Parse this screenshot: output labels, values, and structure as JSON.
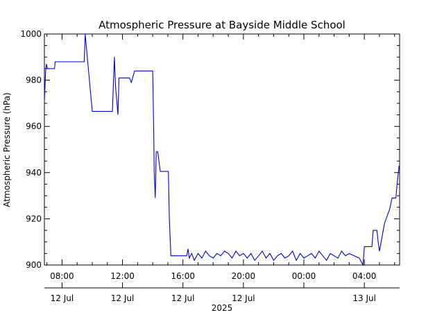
{
  "chart_data": {
    "type": "line",
    "title": "Atmospheric Pressure at Bayside Middle School",
    "ylabel": "Atmospheric Pressure (hPa)",
    "xlabel": "2025",
    "ylim": [
      900,
      1000
    ],
    "y_ticks": [
      900,
      920,
      940,
      960,
      980,
      1000
    ],
    "x_range": [
      "2025-07-12 06:50",
      "2025-07-13 06:20"
    ],
    "x_ticks": [
      {
        "time": "2025-07-12 08:00",
        "label": "08:00",
        "date_label": "12 Jul"
      },
      {
        "time": "2025-07-12 12:00",
        "label": "12:00",
        "date_label": "12 Jul"
      },
      {
        "time": "2025-07-12 16:00",
        "label": "16:00",
        "date_label": "12 Jul"
      },
      {
        "time": "2025-07-12 20:00",
        "label": "20:00",
        "date_label": "12 Jul"
      },
      {
        "time": "2025-07-13 00:00",
        "label": "00:00",
        "date_label": ""
      },
      {
        "time": "2025-07-13 04:00",
        "label": "04:00",
        "date_label": "13 Jul"
      }
    ],
    "x_minor_ticks": [
      "2025-07-12 06:00",
      "2025-07-12 07:00",
      "2025-07-12 09:00",
      "2025-07-12 10:00",
      "2025-07-12 11:00",
      "2025-07-12 13:00",
      "2025-07-12 14:00",
      "2025-07-12 15:00",
      "2025-07-12 17:00",
      "2025-07-12 18:00",
      "2025-07-12 19:00",
      "2025-07-12 21:00",
      "2025-07-12 22:00",
      "2025-07-12 23:00",
      "2025-07-13 01:00",
      "2025-07-13 02:00",
      "2025-07-13 03:00",
      "2025-07-13 05:00",
      "2025-07-13 06:00"
    ],
    "grid": false,
    "series_color": "#0000cc",
    "series": [
      {
        "x": [
          "2025-07-12 06:50",
          "2025-07-12 06:55",
          "2025-07-12 06:58",
          "2025-07-12 07:02",
          "2025-07-12 07:05",
          "2025-07-12 07:30",
          "2025-07-12 07:33",
          "2025-07-12 08:20",
          "2025-07-12 08:50",
          "2025-07-12 09:20",
          "2025-07-12 09:28",
          "2025-07-12 09:32",
          "2025-07-12 10:00",
          "2025-07-12 10:30",
          "2025-07-12 11:10",
          "2025-07-12 11:20",
          "2025-07-12 11:28",
          "2025-07-12 11:32",
          "2025-07-12 11:42",
          "2025-07-12 11:46",
          "2025-07-12 12:20",
          "2025-07-12 12:28",
          "2025-07-12 12:35",
          "2025-07-12 12:48",
          "2025-07-12 13:20",
          "2025-07-12 13:50",
          "2025-07-12 14:00",
          "2025-07-12 14:04",
          "2025-07-12 14:06",
          "2025-07-12 14:10",
          "2025-07-12 14:14",
          "2025-07-12 14:20",
          "2025-07-12 14:30",
          "2025-07-12 14:50",
          "2025-07-12 15:02",
          "2025-07-12 15:06",
          "2025-07-12 15:12",
          "2025-07-12 15:45",
          "2025-07-12 16:15",
          "2025-07-12 16:20",
          "2025-07-12 16:25",
          "2025-07-12 16:35",
          "2025-07-12 16:45",
          "2025-07-12 17:00",
          "2025-07-12 17:15",
          "2025-07-12 17:30",
          "2025-07-12 17:45",
          "2025-07-12 18:00",
          "2025-07-12 18:15",
          "2025-07-12 18:30",
          "2025-07-12 18:45",
          "2025-07-12 19:00",
          "2025-07-12 19:15",
          "2025-07-12 19:30",
          "2025-07-12 19:45",
          "2025-07-12 20:00",
          "2025-07-12 20:15",
          "2025-07-12 20:30",
          "2025-07-12 20:45",
          "2025-07-12 21:00",
          "2025-07-12 21:15",
          "2025-07-12 21:30",
          "2025-07-12 21:45",
          "2025-07-12 22:00",
          "2025-07-12 22:15",
          "2025-07-12 22:30",
          "2025-07-12 22:45",
          "2025-07-12 23:00",
          "2025-07-12 23:15",
          "2025-07-12 23:30",
          "2025-07-12 23:45",
          "2025-07-13 00:00",
          "2025-07-13 00:15",
          "2025-07-13 00:30",
          "2025-07-13 00:45",
          "2025-07-13 01:00",
          "2025-07-13 01:15",
          "2025-07-13 01:30",
          "2025-07-13 01:45",
          "2025-07-13 02:00",
          "2025-07-13 02:15",
          "2025-07-13 02:30",
          "2025-07-13 02:45",
          "2025-07-13 03:00",
          "2025-07-13 03:20",
          "2025-07-13 03:40",
          "2025-07-13 03:50",
          "2025-07-13 03:55",
          "2025-07-13 04:00",
          "2025-07-13 04:10",
          "2025-07-13 04:30",
          "2025-07-13 04:35",
          "2025-07-13 04:50",
          "2025-07-13 04:55",
          "2025-07-13 05:00",
          "2025-07-13 05:10",
          "2025-07-13 05:20",
          "2025-07-13 05:40",
          "2025-07-13 05:50",
          "2025-07-13 06:05",
          "2025-07-13 06:10",
          "2025-07-13 06:15",
          "2025-07-13 06:18"
        ],
        "y": [
          971,
          984,
          987,
          985,
          985,
          985,
          988,
          988,
          988,
          988,
          988,
          1000,
          966.5,
          966.5,
          966.5,
          966.5,
          990,
          978,
          965,
          981,
          981,
          981,
          979,
          984,
          984,
          984,
          984,
          957,
          940,
          929,
          949,
          949,
          940.5,
          940.5,
          940.5,
          920,
          904,
          904,
          904,
          907,
          903,
          905,
          902,
          905,
          903,
          906,
          904,
          903,
          905,
          904,
          906,
          905,
          903,
          906,
          904,
          905,
          903,
          905,
          902,
          904,
          906,
          903,
          905,
          902,
          904,
          905,
          903,
          904,
          906,
          902,
          905,
          903,
          904,
          905,
          903,
          906,
          904,
          902,
          905,
          904,
          903,
          906,
          904,
          905,
          904,
          903,
          901,
          900,
          908,
          908,
          908,
          915,
          915,
          910,
          906,
          912,
          918,
          924,
          929,
          929,
          935,
          940,
          943
        ]
      }
    ]
  }
}
